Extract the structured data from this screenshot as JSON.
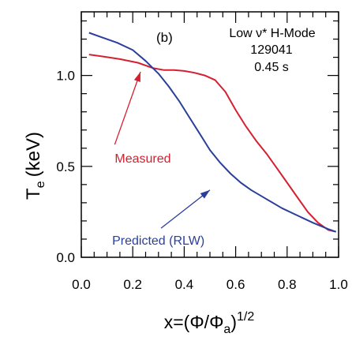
{
  "chart_data": {
    "type": "line",
    "panel_label": "(b)",
    "title_lines": [
      "Low ν* H-Mode",
      "129041",
      "0.45 s"
    ],
    "ylabel": "T",
    "ylabel_sub": "e",
    "ylabel_unit": "(keV)",
    "xlabel_prefix": "x=(Φ/Φ",
    "xlabel_sub": "a",
    "xlabel_suffix": ")",
    "xlabel_sup": "1/2",
    "xlim": [
      0.0,
      1.0
    ],
    "ylim": [
      0.0,
      1.35
    ],
    "x_ticks": [
      {
        "v": 0.0,
        "label": "0.0"
      },
      {
        "v": 0.2,
        "label": "0.2"
      },
      {
        "v": 0.4,
        "label": "0.4"
      },
      {
        "v": 0.6,
        "label": "0.6"
      },
      {
        "v": 0.8,
        "label": "0.8"
      },
      {
        "v": 1.0,
        "label": "1.0"
      }
    ],
    "y_ticks": [
      {
        "v": 0.0,
        "label": "0.0"
      },
      {
        "v": 0.5,
        "label": "0.5"
      },
      {
        "v": 1.0,
        "label": "1.0"
      }
    ],
    "x_minor_step": 0.05,
    "y_minor_step": 0.1,
    "series": [
      {
        "name": "Measured",
        "color": "#d42030",
        "x": [
          0.03,
          0.08,
          0.15,
          0.22,
          0.28,
          0.32,
          0.36,
          0.4,
          0.44,
          0.48,
          0.52,
          0.56,
          0.6,
          0.64,
          0.68,
          0.72,
          0.76,
          0.8,
          0.84,
          0.88,
          0.92,
          0.96,
          0.99
        ],
        "y": [
          1.115,
          1.105,
          1.09,
          1.07,
          1.04,
          1.03,
          1.03,
          1.025,
          1.015,
          1.0,
          0.975,
          0.91,
          0.81,
          0.72,
          0.64,
          0.57,
          0.49,
          0.41,
          0.33,
          0.25,
          0.19,
          0.15,
          0.14
        ]
      },
      {
        "name": "Predicted (RLW)",
        "color": "#2a3f9a",
        "x": [
          0.03,
          0.08,
          0.14,
          0.2,
          0.25,
          0.3,
          0.34,
          0.38,
          0.42,
          0.46,
          0.5,
          0.54,
          0.58,
          0.62,
          0.66,
          0.72,
          0.78,
          0.84,
          0.9,
          0.96,
          0.99
        ],
        "y": [
          1.235,
          1.21,
          1.18,
          1.14,
          1.08,
          1.01,
          0.94,
          0.86,
          0.77,
          0.68,
          0.59,
          0.52,
          0.46,
          0.41,
          0.37,
          0.32,
          0.27,
          0.23,
          0.19,
          0.155,
          0.14
        ]
      }
    ],
    "annotations": [
      {
        "text": "Measured",
        "color": "#d42030",
        "at": [
          0.13,
          0.52
        ],
        "arrow_from": [
          0.13,
          0.62
        ],
        "arrow_to": [
          0.23,
          1.02
        ]
      },
      {
        "text": "Predicted (RLW)",
        "color": "#2a3f9a",
        "at": [
          0.12,
          0.07
        ],
        "arrow_from": [
          0.31,
          0.16
        ],
        "arrow_to": [
          0.5,
          0.37
        ]
      }
    ]
  }
}
